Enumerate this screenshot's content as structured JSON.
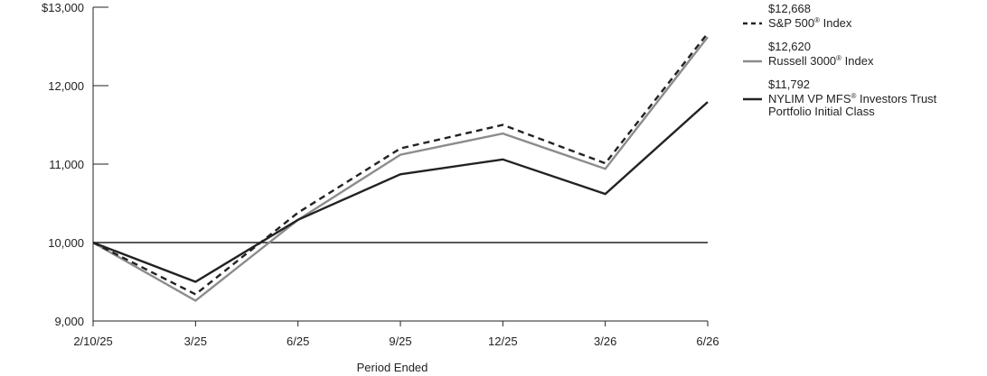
{
  "chart_data": {
    "type": "line",
    "title": "",
    "xlabel": "Period Ended",
    "ylabel": "",
    "categories": [
      "2/10/25",
      "3/25",
      "6/25",
      "9/25",
      "12/25",
      "3/26",
      "6/26"
    ],
    "y_tick_labels": [
      "$13,000",
      "12,000",
      "11,000",
      "10,000",
      "9,000"
    ],
    "y_ticks": [
      13000,
      12000,
      11000,
      10000,
      9000
    ],
    "ylim": [
      9000,
      13000
    ],
    "grid": false,
    "reference_line": 10000,
    "legend_position": "right",
    "series": [
      {
        "name": "S&P 500® Index",
        "name_main": "S&P 500",
        "name_sup": "®",
        "name_rest": " Index",
        "ending_value_label": "$12,668",
        "style": "dashed",
        "color": "#222222",
        "values": [
          10000,
          9340,
          10380,
          11200,
          11500,
          11010,
          12668
        ]
      },
      {
        "name": "Russell 3000® Index",
        "name_main": "Russell 3000",
        "name_sup": "®",
        "name_rest": " Index",
        "ending_value_label": "$12,620",
        "style": "solid",
        "color": "#8c8c8c",
        "values": [
          10000,
          9260,
          10290,
          11120,
          11390,
          10940,
          12620
        ]
      },
      {
        "name": "NYLIM VP MFS® Investors Trust Portfolio Initial Class",
        "name_main": "NYLIM VP MFS",
        "name_sup": "®",
        "name_rest": " Investors Trust",
        "name_line2": "Portfolio Initial Class",
        "ending_value_label": "$11,792",
        "style": "solid",
        "color": "#222222",
        "values": [
          10000,
          9500,
          10290,
          10870,
          11060,
          10620,
          11792
        ]
      }
    ]
  }
}
